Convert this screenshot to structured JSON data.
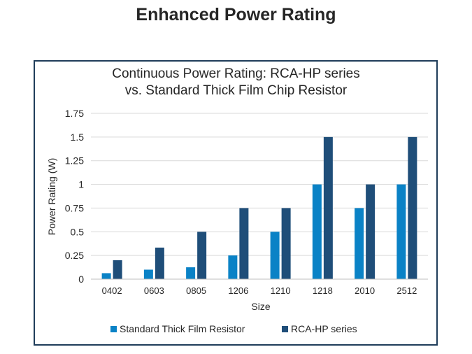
{
  "slide": {
    "title": "Enhanced Power Rating"
  },
  "chart_data": {
    "type": "bar",
    "title_lines": [
      "Continuous Power Rating: RCA-HP series",
      "vs. Standard Thick Film Chip Resistor"
    ],
    "xlabel": "Size",
    "ylabel": "Power Rating (W)",
    "ylim": [
      0,
      1.75
    ],
    "yticks": [
      0,
      0.25,
      0.5,
      0.75,
      1,
      1.25,
      1.5,
      1.75
    ],
    "ytick_labels": [
      "0",
      "0.25",
      "0.5",
      "0.75",
      "1",
      "1.25",
      "1.5",
      "1.75"
    ],
    "grid": true,
    "legend_position": "bottom",
    "categories": [
      "0402",
      "0603",
      "0805",
      "1206",
      "1210",
      "1218",
      "2010",
      "2512"
    ],
    "series": [
      {
        "name": "Standard Thick Film Resistor",
        "color": "#0a82c6",
        "values": [
          0.063,
          0.1,
          0.125,
          0.25,
          0.5,
          1,
          0.75,
          1
        ]
      },
      {
        "name": "RCA-HP series",
        "color": "#1f4e79",
        "values": [
          0.2,
          0.333,
          0.5,
          0.75,
          0.75,
          1.5,
          1,
          1.5
        ]
      }
    ]
  }
}
